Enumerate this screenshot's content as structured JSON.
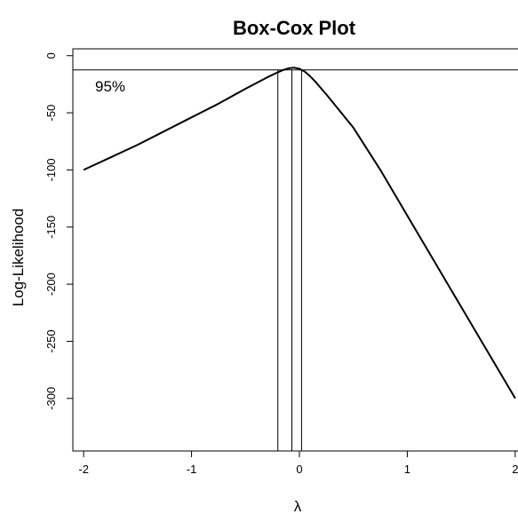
{
  "chart_data": {
    "type": "line",
    "title": "Box-Cox Plot",
    "xlabel": "λ",
    "ylabel": "Log-Likelihood",
    "xlim": [
      -2.1,
      2.1
    ],
    "ylim": [
      -346,
      6
    ],
    "x_ticks": [
      -2,
      -1,
      0,
      1,
      2
    ],
    "x_tick_labels": [
      "-2",
      "-1",
      "0",
      "1",
      "2"
    ],
    "y_ticks": [
      0,
      -50,
      -100,
      -150,
      -200,
      -250,
      -300
    ],
    "y_tick_labels": [
      "0",
      "-50",
      "-100",
      "-150",
      "-200",
      "-250",
      "-300"
    ],
    "grid": false,
    "series": [
      {
        "x": [
          -2.0,
          -1.75,
          -1.5,
          -1.25,
          -1.0,
          -0.75,
          -0.5,
          -0.3,
          -0.2,
          -0.15,
          -0.1,
          -0.05,
          0.0,
          0.05,
          0.1,
          0.15,
          0.25,
          0.5,
          0.75,
          1.0,
          1.25,
          1.5,
          1.75,
          2.0
        ],
        "y": [
          -100,
          -89,
          -78,
          -66,
          -54,
          -42,
          -29,
          -19,
          -14.5,
          -12.5,
          -11,
          -10.5,
          -11.5,
          -14,
          -18,
          -23,
          -34,
          -63,
          -100,
          -140,
          -180,
          -220,
          -260,
          -300
        ]
      }
    ],
    "ci_threshold": -12.5,
    "ci_label": "95%",
    "vlines": [
      -0.2,
      -0.07,
      0.02
    ],
    "color": "#000000"
  }
}
